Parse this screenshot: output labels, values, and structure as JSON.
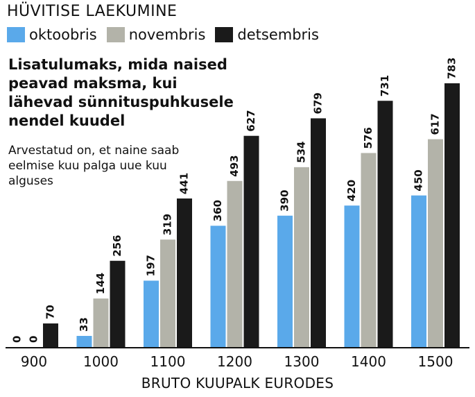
{
  "header": {
    "title": "HÜVITISE LAEKUMINE"
  },
  "legend": [
    {
      "label": "oktoobris",
      "color": "#5aa9ea"
    },
    {
      "label": "novembris",
      "color": "#b3b3a9"
    },
    {
      "label": "detsembris",
      "color": "#1a1a1a"
    }
  ],
  "subtitle": "Lisatulumaks, mida naised peavad maksma, kui lähevad sünnituspuhkusele nendel kuudel",
  "note": "Arvestatud on, et naine saab eelmise kuu palga uue kuu alguses",
  "chart_data": {
    "type": "bar",
    "title": "HÜVITISE LAEKUMINE",
    "xlabel": "BRUTO KUUPALK EURODES",
    "ylabel": "",
    "categories": [
      "900",
      "1000",
      "1100",
      "1200",
      "1300",
      "1400",
      "1500"
    ],
    "series": [
      {
        "name": "oktoobris",
        "color": "#5aa9ea",
        "values": [
          0,
          33,
          197,
          360,
          390,
          420,
          450
        ]
      },
      {
        "name": "novembris",
        "color": "#b3b3a9",
        "values": [
          0,
          144,
          319,
          493,
          534,
          576,
          617
        ]
      },
      {
        "name": "detsembris",
        "color": "#1a1a1a",
        "values": [
          70,
          256,
          441,
          627,
          679,
          731,
          783
        ]
      }
    ],
    "ylim": [
      0,
      783
    ],
    "grid": false,
    "legend_position": "top-left"
  }
}
